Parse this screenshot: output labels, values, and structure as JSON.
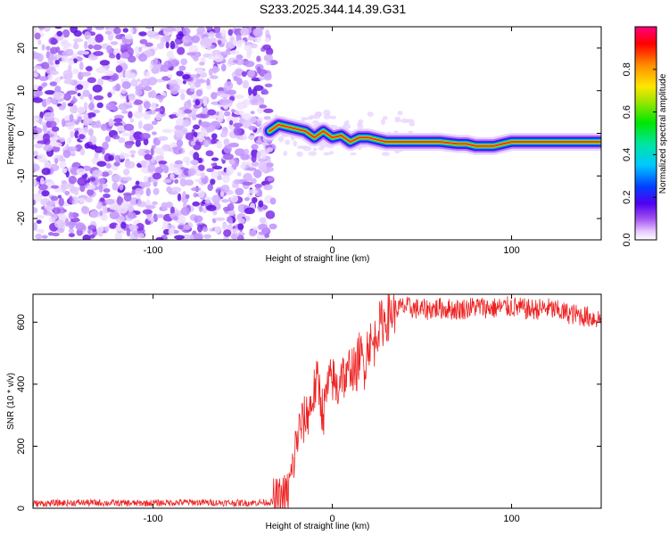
{
  "page_title": "S233.2025.344.14.39.G31",
  "chart_data": [
    {
      "type": "heatmap",
      "name": "spectrogram",
      "title": "S233.2025.344.14.39.G31",
      "xlabel": "Height of straight line (km)",
      "ylabel": "Frequency (Hz)",
      "xlim": [
        -167,
        150
      ],
      "ylim": [
        -25,
        25
      ],
      "xticks": [
        -100,
        0,
        100
      ],
      "yticks": [
        -20,
        -10,
        0,
        10,
        20
      ],
      "noise_region_x": [
        -167,
        -33
      ],
      "signal_start_x": -35,
      "ridge": {
        "x": [
          -35,
          -30,
          -25,
          -20,
          -15,
          -10,
          -5,
          0,
          5,
          10,
          15,
          20,
          25,
          30,
          40,
          50,
          60,
          70,
          75,
          80,
          85,
          90,
          95,
          100,
          110,
          120,
          130,
          140,
          150
        ],
        "freq": [
          0.5,
          2,
          1.5,
          1,
          0.5,
          -1,
          0.5,
          -1,
          -0.5,
          -2,
          -1,
          -1,
          -1.5,
          -2,
          -2,
          -2,
          -2,
          -2.5,
          -2.5,
          -3,
          -3,
          -3,
          -2.5,
          -2,
          -2,
          -2,
          -2,
          -2,
          -2
        ]
      },
      "colorbar": {
        "label": "Normalized spectral amplitude",
        "range": [
          0,
          1
        ],
        "ticks": [
          0.0,
          0.2,
          0.4,
          0.6,
          0.8
        ]
      }
    },
    {
      "type": "line",
      "name": "snr",
      "xlabel": "Height of straight line (km)",
      "ylabel": "SNR (10 * v/v)",
      "xlim": [
        -167,
        150
      ],
      "ylim": [
        0,
        690
      ],
      "xticks": [
        -100,
        0,
        100
      ],
      "yticks": [
        0,
        200,
        400,
        600
      ],
      "color": "#ee2222",
      "series": [
        {
          "name": "SNR",
          "x": [
            -167,
            -140,
            -110,
            -80,
            -50,
            -30,
            -25,
            -22,
            -20,
            -18,
            -15,
            -12,
            -10,
            -8,
            -5,
            -3,
            0,
            3,
            5,
            8,
            10,
            13,
            15,
            18,
            20,
            23,
            25,
            28,
            30,
            33,
            35,
            40,
            50,
            60,
            70,
            80,
            90,
            100,
            110,
            120,
            130,
            140,
            150
          ],
          "values": [
            15,
            18,
            16,
            19,
            17,
            20,
            45,
            130,
            220,
            260,
            290,
            330,
            380,
            410,
            300,
            380,
            420,
            380,
            450,
            400,
            470,
            430,
            500,
            460,
            540,
            520,
            580,
            600,
            610,
            630,
            640,
            650,
            640,
            645,
            640,
            650,
            645,
            650,
            640,
            645,
            630,
            620,
            610
          ]
        }
      ]
    }
  ]
}
